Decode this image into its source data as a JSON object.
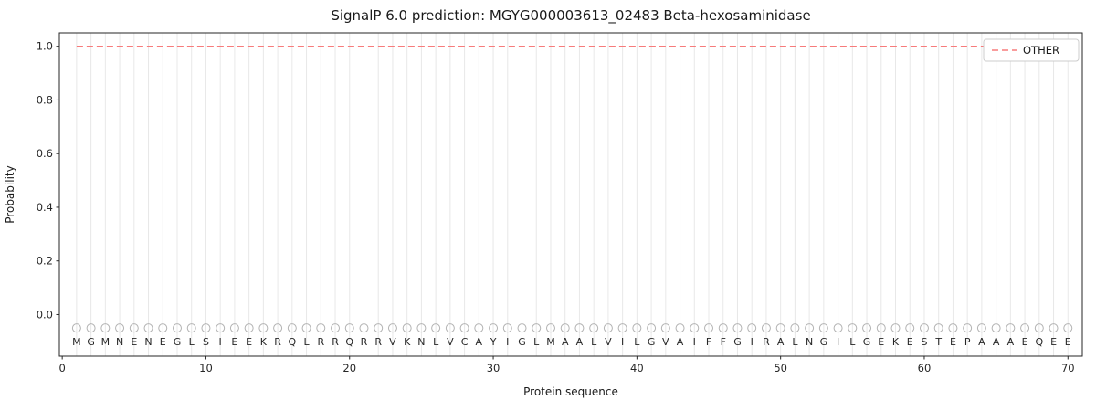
{
  "figure": {
    "title": "SignalP 6.0 prediction: MGYG000003613_02483 Beta-hexosaminidase",
    "xlabel": "Protein sequence",
    "ylabel": "Probability"
  },
  "legend": {
    "position": "upper right",
    "entries": [
      {
        "label": "OTHER",
        "color": "#f77b7b",
        "style": "dashed"
      }
    ]
  },
  "colors": {
    "other_line": "#f77b7b",
    "gridline": "#e8e8e8",
    "axis_border": "#262626",
    "marker_circle": "#b3b3b3",
    "sequence_letter": "#333333"
  },
  "chart_data": {
    "type": "line",
    "title": "SignalP 6.0 prediction: MGYG000003613_02483 Beta-hexosaminidase",
    "xlabel": "Protein sequence",
    "ylabel": "Probability",
    "xlim": [
      -0.2,
      71.0
    ],
    "ylim": [
      -0.155,
      1.05
    ],
    "xticks": [
      0,
      10,
      20,
      30,
      40,
      50,
      60,
      70
    ],
    "yticks": [
      0.0,
      0.2,
      0.4,
      0.6,
      0.8,
      1.0
    ],
    "grid": "vertical-per-residue",
    "legend_position": "upper right",
    "series": [
      {
        "name": "OTHER",
        "style": "dashed",
        "color": "#f77b7b",
        "x": [
          1,
          70
        ],
        "values": [
          1.0,
          1.0
        ],
        "constant_value": 1.0
      }
    ],
    "sequence": [
      "M",
      "G",
      "M",
      "N",
      "E",
      "N",
      "E",
      "G",
      "L",
      "S",
      "I",
      "E",
      "E",
      "K",
      "R",
      "Q",
      "L",
      "R",
      "R",
      "Q",
      "R",
      "R",
      "V",
      "K",
      "N",
      "L",
      "V",
      "C",
      "A",
      "Y",
      "I",
      "G",
      "L",
      "M",
      "A",
      "A",
      "L",
      "V",
      "I",
      "L",
      "G",
      "V",
      "A",
      "I",
      "F",
      "F",
      "G",
      "I",
      "R",
      "A",
      "L",
      "N",
      "G",
      "I",
      "L",
      "G",
      "E",
      "K",
      "E",
      "S",
      "T",
      "E",
      "P",
      "A",
      "A",
      "A",
      "E",
      "Q",
      "E",
      "E"
    ],
    "sequence_marker": "circle",
    "sequence_marker_y": -0.05,
    "sequence_letter_y": -0.1
  }
}
